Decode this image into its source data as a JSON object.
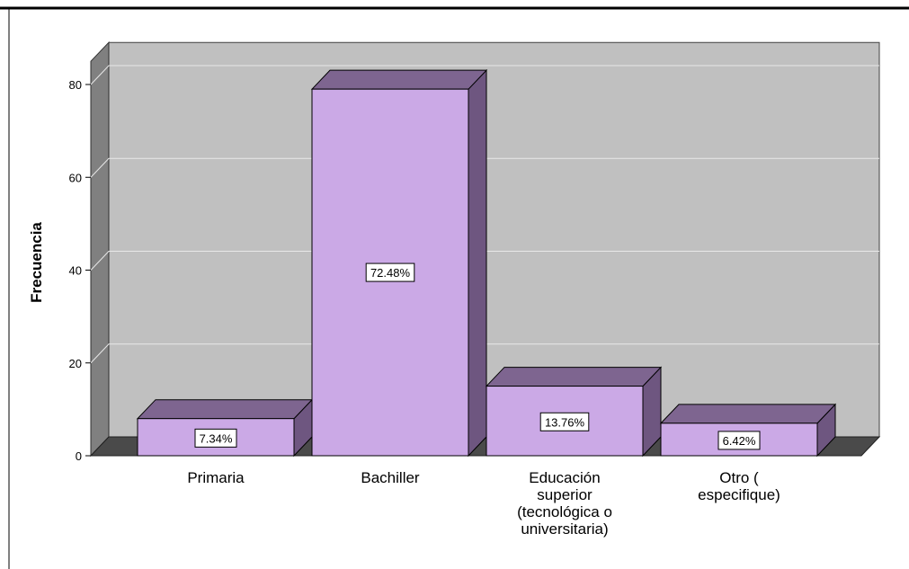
{
  "chart_data": {
    "type": "bar",
    "title": "",
    "xlabel": "",
    "ylabel": "Frecuencia",
    "ylim": [
      0,
      85
    ],
    "yticks": [
      "0",
      "20",
      "40",
      "60",
      "80"
    ],
    "grid": true,
    "legend": "none",
    "three_d": true,
    "categories": [
      [
        "Primaria"
      ],
      [
        "Bachiller"
      ],
      [
        "Educación",
        "superior",
        "(tecnológica o",
        "universitaria)"
      ],
      [
        "Otro (",
        "especifique)"
      ]
    ],
    "values": [
      8,
      79,
      15,
      7
    ],
    "data_labels": [
      "7.34%",
      "72.48%",
      "13.76%",
      "6.42%"
    ],
    "colors": {
      "bar_front": "#cba9e6",
      "bar_top": "#7e6590",
      "bar_side": "#6e5680",
      "plot_back": "#c0c0c0",
      "plot_left_wall": "#808080",
      "floor": "#4a4a4a",
      "gridline": "#e8e8e8"
    }
  }
}
